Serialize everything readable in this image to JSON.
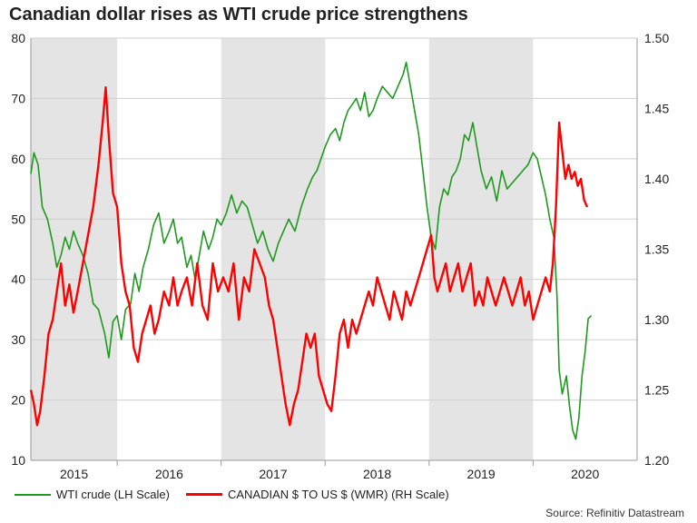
{
  "chart_data": {
    "type": "line",
    "title": "Canadian dollar rises as WTI crude price strengthens",
    "x_range": [
      2014.67,
      2020.5
    ],
    "x_ticks": [
      {
        "label": "2015",
        "start": 2014.67,
        "end": 2015.5
      },
      {
        "label": "2016",
        "start": 2015.5,
        "end": 2016.5
      },
      {
        "label": "2017",
        "start": 2016.5,
        "end": 2017.5
      },
      {
        "label": "2018",
        "start": 2017.5,
        "end": 2018.5
      },
      {
        "label": "2019",
        "start": 2018.5,
        "end": 2019.5
      },
      {
        "label": "2020",
        "start": 2019.5,
        "end": 2020.5
      }
    ],
    "shaded_periods": [
      [
        2014.67,
        2015.5
      ],
      [
        2016.5,
        2017.5
      ],
      [
        2018.5,
        2019.5
      ]
    ],
    "y_left": {
      "min": 10,
      "max": 80,
      "ticks": [
        "80",
        "70",
        "60",
        "50",
        "40",
        "30",
        "20",
        "10"
      ]
    },
    "y_right": {
      "min": 1.2,
      "max": 1.5,
      "ticks": [
        "1.50",
        "1.45",
        "1.40",
        "1.35",
        "1.30",
        "1.25",
        "1.20"
      ]
    },
    "series": [
      {
        "name": "WTI crude (LH Scale)",
        "axis": "left",
        "color": "#1e9a1e",
        "points": [
          [
            2014.67,
            57.5
          ],
          [
            2014.7,
            61
          ],
          [
            2014.74,
            59
          ],
          [
            2014.78,
            52
          ],
          [
            2014.83,
            50
          ],
          [
            2014.88,
            46
          ],
          [
            2014.92,
            42
          ],
          [
            2014.96,
            44
          ],
          [
            2015.0,
            47
          ],
          [
            2015.04,
            45
          ],
          [
            2015.08,
            48
          ],
          [
            2015.12,
            46
          ],
          [
            2015.17,
            44
          ],
          [
            2015.22,
            41
          ],
          [
            2015.27,
            36
          ],
          [
            2015.32,
            35
          ],
          [
            2015.38,
            31
          ],
          [
            2015.42,
            27
          ],
          [
            2015.46,
            33
          ],
          [
            2015.5,
            34
          ],
          [
            2015.54,
            30
          ],
          [
            2015.58,
            35
          ],
          [
            2015.63,
            36
          ],
          [
            2015.67,
            41
          ],
          [
            2015.71,
            38
          ],
          [
            2015.75,
            42
          ],
          [
            2015.8,
            45
          ],
          [
            2015.85,
            49
          ],
          [
            2015.9,
            51
          ],
          [
            2015.95,
            46
          ],
          [
            2016.0,
            48
          ],
          [
            2016.04,
            50
          ],
          [
            2016.08,
            46
          ],
          [
            2016.12,
            47
          ],
          [
            2016.17,
            42
          ],
          [
            2016.21,
            44
          ],
          [
            2016.25,
            40
          ],
          [
            2016.29,
            44
          ],
          [
            2016.33,
            48
          ],
          [
            2016.38,
            45
          ],
          [
            2016.42,
            47
          ],
          [
            2016.46,
            50
          ],
          [
            2016.5,
            49
          ],
          [
            2016.55,
            51
          ],
          [
            2016.6,
            54
          ],
          [
            2016.65,
            51
          ],
          [
            2016.7,
            53
          ],
          [
            2016.75,
            52
          ],
          [
            2016.8,
            49
          ],
          [
            2016.85,
            46
          ],
          [
            2016.9,
            48
          ],
          [
            2016.95,
            45
          ],
          [
            2017.0,
            43
          ],
          [
            2017.05,
            46
          ],
          [
            2017.1,
            48
          ],
          [
            2017.15,
            50
          ],
          [
            2017.21,
            48
          ],
          [
            2017.27,
            52
          ],
          [
            2017.33,
            55
          ],
          [
            2017.38,
            57
          ],
          [
            2017.42,
            58
          ],
          [
            2017.46,
            60
          ],
          [
            2017.5,
            62
          ],
          [
            2017.55,
            64
          ],
          [
            2017.6,
            65
          ],
          [
            2017.64,
            63
          ],
          [
            2017.68,
            66
          ],
          [
            2017.72,
            68
          ],
          [
            2017.76,
            69
          ],
          [
            2017.8,
            70
          ],
          [
            2017.84,
            68
          ],
          [
            2017.88,
            71
          ],
          [
            2017.92,
            67
          ],
          [
            2017.96,
            68
          ],
          [
            2018.0,
            70
          ],
          [
            2018.05,
            72
          ],
          [
            2018.1,
            71
          ],
          [
            2018.15,
            70
          ],
          [
            2018.2,
            72
          ],
          [
            2018.25,
            74
          ],
          [
            2018.28,
            76
          ],
          [
            2018.32,
            72
          ],
          [
            2018.36,
            68
          ],
          [
            2018.4,
            64
          ],
          [
            2018.44,
            58
          ],
          [
            2018.48,
            52
          ],
          [
            2018.52,
            47
          ],
          [
            2018.56,
            45
          ],
          [
            2018.6,
            52
          ],
          [
            2018.64,
            55
          ],
          [
            2018.68,
            54
          ],
          [
            2018.72,
            57
          ],
          [
            2018.76,
            58
          ],
          [
            2018.8,
            60
          ],
          [
            2018.84,
            64
          ],
          [
            2018.88,
            63
          ],
          [
            2018.92,
            66
          ],
          [
            2018.96,
            62
          ],
          [
            2019.0,
            58
          ],
          [
            2019.05,
            55
          ],
          [
            2019.1,
            57
          ],
          [
            2019.15,
            53
          ],
          [
            2019.2,
            58
          ],
          [
            2019.25,
            55
          ],
          [
            2019.3,
            56
          ],
          [
            2019.35,
            57
          ],
          [
            2019.4,
            58
          ],
          [
            2019.45,
            59
          ],
          [
            2019.5,
            61
          ],
          [
            2019.54,
            60
          ],
          [
            2019.58,
            57
          ],
          [
            2019.62,
            54
          ],
          [
            2019.66,
            50
          ],
          [
            2019.7,
            47
          ],
          [
            2019.73,
            37
          ],
          [
            2019.75,
            25
          ],
          [
            2019.78,
            21
          ],
          [
            2019.82,
            24
          ],
          [
            2019.85,
            19
          ],
          [
            2019.88,
            15
          ],
          [
            2019.91,
            13.5
          ],
          [
            2019.94,
            17
          ],
          [
            2019.97,
            24
          ],
          [
            2020.0,
            28
          ],
          [
            2020.03,
            33.5
          ],
          [
            2020.06,
            34
          ]
        ]
      },
      {
        "name": "CANADIAN $ TO US $ (WMR) (RH Scale)",
        "axis": "right",
        "color": "#ff0000",
        "points": [
          [
            2014.67,
            1.25
          ],
          [
            2014.7,
            1.24
          ],
          [
            2014.73,
            1.225
          ],
          [
            2014.76,
            1.235
          ],
          [
            2014.8,
            1.26
          ],
          [
            2014.84,
            1.29
          ],
          [
            2014.88,
            1.3
          ],
          [
            2014.92,
            1.32
          ],
          [
            2014.96,
            1.34
          ],
          [
            2015.0,
            1.31
          ],
          [
            2015.04,
            1.325
          ],
          [
            2015.08,
            1.305
          ],
          [
            2015.12,
            1.32
          ],
          [
            2015.17,
            1.34
          ],
          [
            2015.22,
            1.36
          ],
          [
            2015.27,
            1.38
          ],
          [
            2015.32,
            1.41
          ],
          [
            2015.36,
            1.44
          ],
          [
            2015.39,
            1.465
          ],
          [
            2015.42,
            1.43
          ],
          [
            2015.46,
            1.39
          ],
          [
            2015.5,
            1.38
          ],
          [
            2015.54,
            1.34
          ],
          [
            2015.58,
            1.32
          ],
          [
            2015.62,
            1.31
          ],
          [
            2015.66,
            1.28
          ],
          [
            2015.7,
            1.27
          ],
          [
            2015.74,
            1.29
          ],
          [
            2015.78,
            1.3
          ],
          [
            2015.82,
            1.31
          ],
          [
            2015.86,
            1.29
          ],
          [
            2015.9,
            1.3
          ],
          [
            2015.95,
            1.32
          ],
          [
            2016.0,
            1.31
          ],
          [
            2016.04,
            1.33
          ],
          [
            2016.08,
            1.31
          ],
          [
            2016.12,
            1.32
          ],
          [
            2016.17,
            1.33
          ],
          [
            2016.22,
            1.31
          ],
          [
            2016.27,
            1.34
          ],
          [
            2016.32,
            1.31
          ],
          [
            2016.37,
            1.3
          ],
          [
            2016.42,
            1.34
          ],
          [
            2016.47,
            1.32
          ],
          [
            2016.52,
            1.33
          ],
          [
            2016.57,
            1.32
          ],
          [
            2016.62,
            1.34
          ],
          [
            2016.67,
            1.3
          ],
          [
            2016.72,
            1.33
          ],
          [
            2016.77,
            1.32
          ],
          [
            2016.82,
            1.35
          ],
          [
            2016.87,
            1.34
          ],
          [
            2016.92,
            1.33
          ],
          [
            2016.96,
            1.31
          ],
          [
            2017.0,
            1.3
          ],
          [
            2017.04,
            1.28
          ],
          [
            2017.08,
            1.26
          ],
          [
            2017.12,
            1.24
          ],
          [
            2017.16,
            1.225
          ],
          [
            2017.2,
            1.24
          ],
          [
            2017.24,
            1.25
          ],
          [
            2017.28,
            1.27
          ],
          [
            2017.32,
            1.29
          ],
          [
            2017.36,
            1.28
          ],
          [
            2017.4,
            1.29
          ],
          [
            2017.44,
            1.26
          ],
          [
            2017.48,
            1.25
          ],
          [
            2017.52,
            1.24
          ],
          [
            2017.56,
            1.235
          ],
          [
            2017.6,
            1.26
          ],
          [
            2017.64,
            1.29
          ],
          [
            2017.68,
            1.3
          ],
          [
            2017.72,
            1.28
          ],
          [
            2017.76,
            1.3
          ],
          [
            2017.8,
            1.29
          ],
          [
            2017.84,
            1.3
          ],
          [
            2017.88,
            1.31
          ],
          [
            2017.92,
            1.32
          ],
          [
            2017.96,
            1.31
          ],
          [
            2018.0,
            1.33
          ],
          [
            2018.04,
            1.32
          ],
          [
            2018.08,
            1.31
          ],
          [
            2018.12,
            1.3
          ],
          [
            2018.16,
            1.32
          ],
          [
            2018.2,
            1.31
          ],
          [
            2018.24,
            1.3
          ],
          [
            2018.28,
            1.32
          ],
          [
            2018.32,
            1.31
          ],
          [
            2018.36,
            1.32
          ],
          [
            2018.4,
            1.33
          ],
          [
            2018.44,
            1.34
          ],
          [
            2018.48,
            1.35
          ],
          [
            2018.52,
            1.36
          ],
          [
            2018.55,
            1.33
          ],
          [
            2018.58,
            1.32
          ],
          [
            2018.62,
            1.33
          ],
          [
            2018.66,
            1.34
          ],
          [
            2018.7,
            1.32
          ],
          [
            2018.74,
            1.33
          ],
          [
            2018.78,
            1.34
          ],
          [
            2018.82,
            1.32
          ],
          [
            2018.86,
            1.33
          ],
          [
            2018.9,
            1.34
          ],
          [
            2018.94,
            1.31
          ],
          [
            2018.98,
            1.32
          ],
          [
            2019.02,
            1.31
          ],
          [
            2019.06,
            1.33
          ],
          [
            2019.1,
            1.32
          ],
          [
            2019.14,
            1.31
          ],
          [
            2019.18,
            1.32
          ],
          [
            2019.22,
            1.33
          ],
          [
            2019.26,
            1.32
          ],
          [
            2019.3,
            1.31
          ],
          [
            2019.34,
            1.32
          ],
          [
            2019.38,
            1.33
          ],
          [
            2019.42,
            1.31
          ],
          [
            2019.46,
            1.32
          ],
          [
            2019.5,
            1.3
          ],
          [
            2019.54,
            1.31
          ],
          [
            2019.58,
            1.32
          ],
          [
            2019.62,
            1.33
          ],
          [
            2019.66,
            1.32
          ],
          [
            2019.69,
            1.34
          ],
          [
            2019.72,
            1.38
          ],
          [
            2019.75,
            1.44
          ],
          [
            2019.78,
            1.42
          ],
          [
            2019.81,
            1.4
          ],
          [
            2019.84,
            1.41
          ],
          [
            2019.87,
            1.4
          ],
          [
            2019.9,
            1.405
          ],
          [
            2019.93,
            1.395
          ],
          [
            2019.96,
            1.4
          ],
          [
            2019.99,
            1.385
          ],
          [
            2020.02,
            1.38
          ]
        ]
      }
    ],
    "legend": [
      "WTI crude (LH Scale)",
      "CANADIAN $ TO US $ (WMR) (RH Scale)"
    ],
    "source": "Source: Refinitiv Datastream"
  }
}
